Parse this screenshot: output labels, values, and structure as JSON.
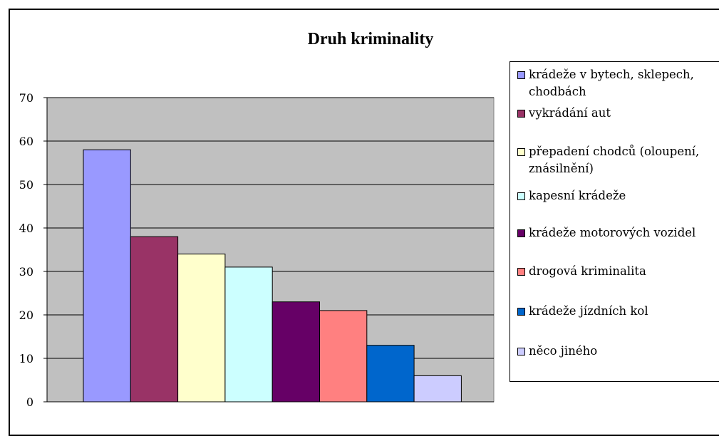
{
  "chart_data": {
    "type": "bar",
    "title": "Druh kriminality",
    "xlabel": "",
    "ylabel": "",
    "ylim": [
      0,
      70
    ],
    "yticks": [
      0,
      10,
      20,
      30,
      40,
      50,
      60,
      70
    ],
    "grid": true,
    "legend_position": "right",
    "series": [
      {
        "name": "krádeže v bytech, sklepech, chodbách",
        "value": 58,
        "color": "#9999FF"
      },
      {
        "name": "vykrádání aut",
        "value": 38,
        "color": "#993366"
      },
      {
        "name": "přepadení chodců (oloupení, znásilnění)",
        "value": 34,
        "color": "#FFFFCC"
      },
      {
        "name": "kapesní krádeže",
        "value": 31,
        "color": "#CCFFFF"
      },
      {
        "name": "krádeže motorových vozidel",
        "value": 23,
        "color": "#660066"
      },
      {
        "name": "drogová kriminalita",
        "value": 21,
        "color": "#FF8080"
      },
      {
        "name": "krádeže jízdních kol",
        "value": 13,
        "color": "#0066CC"
      },
      {
        "name": "něco jiného",
        "value": 6,
        "color": "#CCCCFF"
      }
    ],
    "plot_background": "#C0C0C0"
  }
}
